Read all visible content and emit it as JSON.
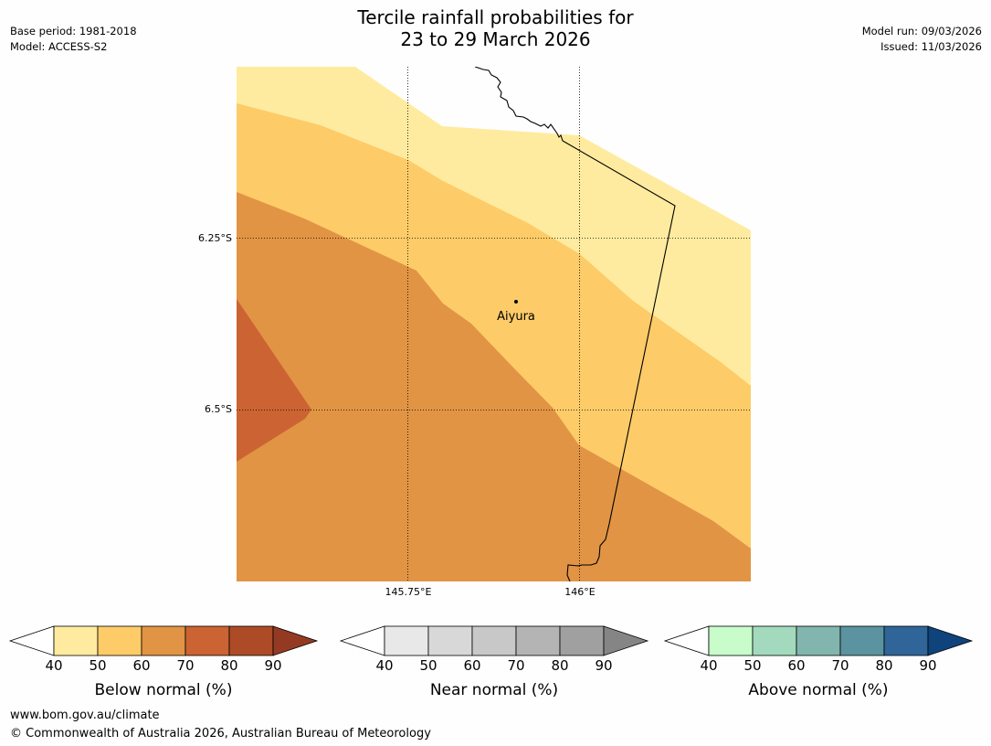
{
  "title": {
    "line1": "Tercile rainfall probabilities for",
    "line2": "23 to 29 March 2026"
  },
  "meta_left": {
    "base_period": "Base period: 1981-2018",
    "model": "Model: ACCESS-S2"
  },
  "meta_right": {
    "model_run": "Model run: 09/03/2026",
    "issued": "Issued: 11/03/2026"
  },
  "map": {
    "graticule": {
      "latitudes": [
        "6.25°S",
        "6.5°S"
      ],
      "longitudes": [
        "145.75°E",
        "146°E"
      ]
    },
    "place": "Aiyura",
    "dominant_category": "Below normal",
    "zones": [
      {
        "range": "40–50%",
        "color": "#ffeb9f"
      },
      {
        "range": "50–60%",
        "color": "#fdcb68"
      },
      {
        "range": "60–70%",
        "color": "#e19444"
      },
      {
        "range": "70–80%",
        "color": "#cb6332"
      }
    ]
  },
  "colorbars": [
    {
      "label": "Below normal (%)",
      "ticks": [
        "40",
        "50",
        "60",
        "70",
        "80",
        "90"
      ],
      "colors": [
        "#ffeb9f",
        "#fdcb68",
        "#e19444",
        "#cb6332",
        "#ad4b27",
        "#953a22"
      ]
    },
    {
      "label": "Near normal (%)",
      "ticks": [
        "40",
        "50",
        "60",
        "70",
        "80",
        "90"
      ],
      "colors": [
        "#e8e8e8",
        "#d8d8d8",
        "#c8c8c8",
        "#b4b4b4",
        "#a0a0a0",
        "#858585"
      ]
    },
    {
      "label": "Above normal (%)",
      "ticks": [
        "40",
        "50",
        "60",
        "70",
        "80",
        "90"
      ],
      "colors": [
        "#c8fcca",
        "#a3d9bc",
        "#82b5ad",
        "#5b93a0",
        "#2f6599",
        "#0e437b"
      ]
    }
  ],
  "footer": {
    "url": "www.bom.gov.au/climate",
    "copyright": "© Commonwealth of Australia 2026, Australian Bureau of Meteorology"
  }
}
